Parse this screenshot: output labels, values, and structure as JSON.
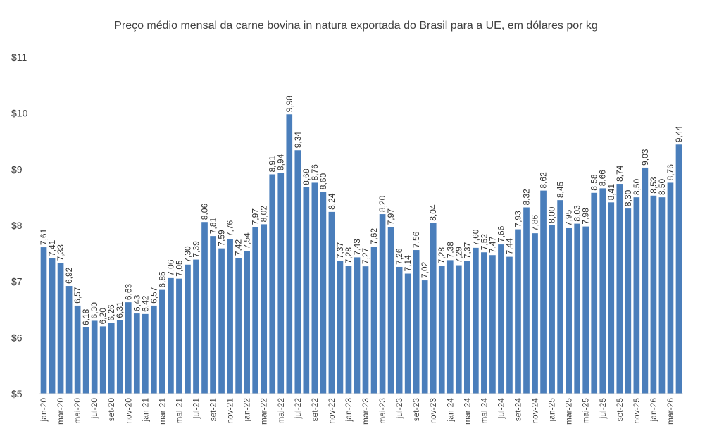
{
  "chart_data": {
    "type": "bar",
    "title": "Preço médio mensal da carne bovina in natura exportada do Brasil para a UE, em dólares por kg",
    "xlabel": "",
    "ylabel": "",
    "ylim": [
      5,
      11
    ],
    "yticks": [
      "$5",
      "$6",
      "$7",
      "$8",
      "$9",
      "$10",
      "$11"
    ],
    "grid": false,
    "legend": "none",
    "bar_color": "#4a7ebb",
    "categories": [
      "jan-20",
      "fev-20",
      "mar-20",
      "abr-20",
      "mai-20",
      "jun-20",
      "jul-20",
      "ago-20",
      "set-20",
      "out-20",
      "nov-20",
      "dez-20",
      "jan-21",
      "fev-21",
      "mar-21",
      "abr-21",
      "mai-21",
      "jun-21",
      "jul-21",
      "ago-21",
      "set-21",
      "out-21",
      "nov-21",
      "dez-21",
      "jan-22",
      "fev-22",
      "mar-22",
      "abr-22",
      "mai-22",
      "jun-22",
      "jul-22",
      "ago-22",
      "set-22",
      "out-22",
      "nov-22",
      "dez-22",
      "jan-23",
      "fev-23",
      "mar-23",
      "abr-23",
      "mai-23",
      "jun-23",
      "jul-23",
      "ago-23",
      "set-23",
      "out-23",
      "nov-23",
      "dez-23",
      "jan-24",
      "fev-24",
      "mar-24",
      "abr-24",
      "mai-24",
      "jun-24",
      "jul-24",
      "ago-24",
      "set-24",
      "out-24",
      "nov-24",
      "dez-24",
      "jan-25",
      "fev-25",
      "mar-25",
      "abr-25",
      "mai-25",
      "jun-25",
      "jul-25",
      "ago-25",
      "set-25",
      "out-25",
      "nov-25",
      "dez-25",
      "jan-26",
      "fev-26",
      "mar-26",
      "abr-26"
    ],
    "visible_tick_labels": [
      "jan-20",
      "mar-20",
      "mai-20",
      "jul-20",
      "set-20",
      "nov-20",
      "jan-21",
      "mar-21",
      "mai-21",
      "jul-21",
      "set-21",
      "nov-21",
      "jan-22",
      "mar-22",
      "mai-22",
      "jul-22",
      "set-22",
      "nov-22",
      "jan-23",
      "mar-23",
      "mai-23",
      "jul-23",
      "set-23",
      "nov-23",
      "jan-24",
      "mar-24",
      "mai-24",
      "jul-24",
      "set-24",
      "nov-24",
      "jan-25",
      "mar-25",
      "mai-25",
      "jul-25",
      "set-25",
      "nov-25",
      "jan-26",
      "mar-26"
    ],
    "values": [
      7.61,
      7.41,
      7.33,
      6.92,
      6.57,
      6.18,
      6.3,
      6.2,
      6.26,
      6.31,
      6.63,
      6.43,
      6.42,
      6.57,
      6.85,
      7.06,
      7.05,
      7.3,
      7.39,
      8.06,
      7.81,
      7.59,
      7.76,
      7.42,
      7.54,
      7.97,
      8.02,
      8.91,
      8.94,
      9.98,
      9.34,
      8.68,
      8.76,
      8.6,
      8.24,
      7.37,
      7.28,
      7.43,
      7.27,
      7.62,
      8.2,
      7.97,
      7.26,
      7.14,
      7.56,
      7.02,
      8.04,
      7.28,
      7.38,
      7.29,
      7.37,
      7.6,
      7.52,
      7.47,
      7.66,
      7.44,
      7.93,
      8.32,
      7.86,
      8.62,
      8.0,
      8.45,
      7.95,
      8.03,
      7.98,
      8.58,
      8.66,
      8.41,
      8.74,
      8.3,
      8.5,
      9.03,
      8.53,
      8.5,
      8.76,
      9.44
    ],
    "data_labels": [
      "7,61",
      "7,41",
      "7,33",
      "6,92",
      "6,57",
      "6,18",
      "6,30",
      "6,20",
      "6,26",
      "6,31",
      "6,63",
      "6,43",
      "6,42",
      "6,57",
      "6,85",
      "7,06",
      "7,05",
      "7,30",
      "7,39",
      "8,06",
      "7,81",
      "7,59",
      "7,76",
      "7,42",
      "7,54",
      "7,97",
      "8,02",
      "8,91",
      "8,94",
      "9,98",
      "9,34",
      "8,68",
      "8,76",
      "8,60",
      "8,24",
      "7,37",
      "7,28",
      "7,43",
      "7,27",
      "7,62",
      "8,20",
      "7,97",
      "7,26",
      "7,14",
      "7,56",
      "7,02",
      "8,04",
      "7,28",
      "7,38",
      "7,29",
      "7,37",
      "7,60",
      "7,52",
      "7,47",
      "7,66",
      "7,44",
      "7,93",
      "8,32",
      "7,86",
      "8,62",
      "8,00",
      "8,45",
      "7,95",
      "8,03",
      "7,98",
      "8,58",
      "8,66",
      "8,41",
      "8,74",
      "8,30",
      "8,50",
      "9,03",
      "8,53",
      "8,50",
      "8,76",
      "9,44"
    ]
  }
}
